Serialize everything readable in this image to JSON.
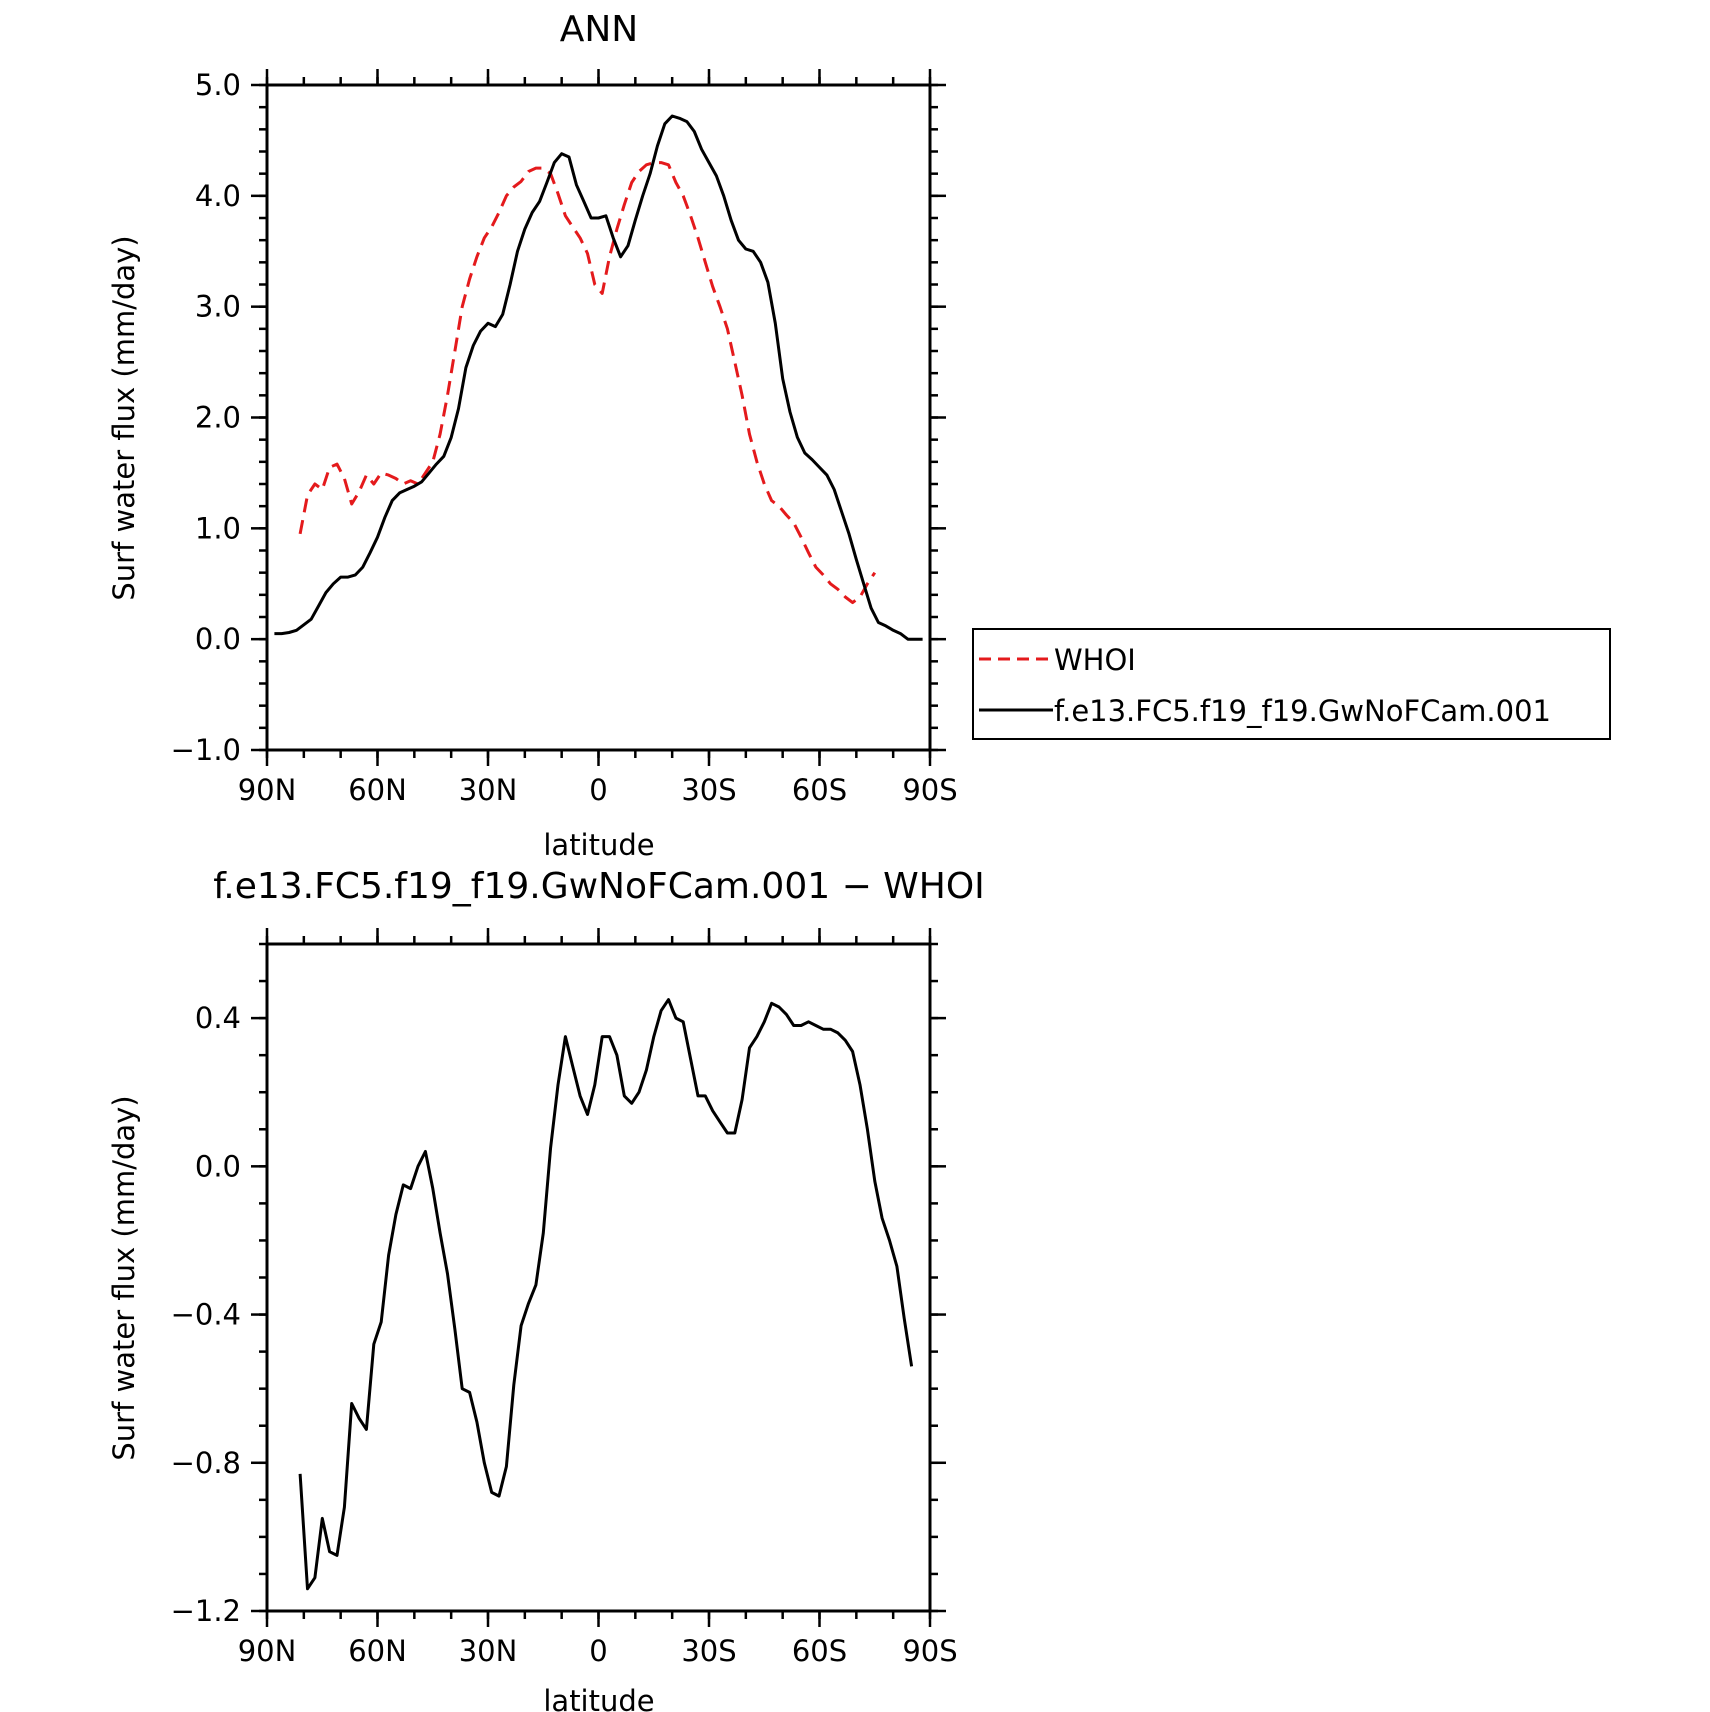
{
  "chart_data": [
    {
      "type": "line",
      "title": "ANN",
      "xlabel": "latitude",
      "ylabel": "Surf water flux (mm/day)",
      "xlim": [
        90,
        -90
      ],
      "ylim": [
        -1.0,
        5.0
      ],
      "x_ticks": [
        90,
        60,
        30,
        0,
        -30,
        -60,
        -90
      ],
      "x_tick_labels": [
        "90N",
        "60N",
        "30N",
        "0",
        "30S",
        "60S",
        "90S"
      ],
      "y_ticks": [
        -1.0,
        0.0,
        1.0,
        2.0,
        3.0,
        4.0,
        5.0
      ],
      "y_tick_labels": [
        "−1.0",
        "0.0",
        "1.0",
        "2.0",
        "3.0",
        "4.0",
        "5.0"
      ],
      "legend_position": "right, outside plot",
      "series": [
        {
          "name": "WHOI",
          "color": "#e41a1c",
          "style": "dashed",
          "points": [
            [
              81,
              0.95
            ],
            [
              79,
              1.3
            ],
            [
              77,
              1.4
            ],
            [
              75,
              1.35
            ],
            [
              73,
              1.55
            ],
            [
              71,
              1.58
            ],
            [
              69,
              1.45
            ],
            [
              67,
              1.22
            ],
            [
              65,
              1.33
            ],
            [
              63,
              1.48
            ],
            [
              61,
              1.4
            ],
            [
              59,
              1.5
            ],
            [
              57,
              1.48
            ],
            [
              55,
              1.45
            ],
            [
              53,
              1.4
            ],
            [
              51,
              1.43
            ],
            [
              49,
              1.4
            ],
            [
              47,
              1.5
            ],
            [
              45,
              1.6
            ],
            [
              43,
              1.85
            ],
            [
              41,
              2.2
            ],
            [
              39,
              2.6
            ],
            [
              37,
              3.0
            ],
            [
              35,
              3.25
            ],
            [
              33,
              3.45
            ],
            [
              31,
              3.62
            ],
            [
              29,
              3.72
            ],
            [
              27,
              3.85
            ],
            [
              25,
              4.0
            ],
            [
              23,
              4.08
            ],
            [
              21,
              4.13
            ],
            [
              19,
              4.22
            ],
            [
              17,
              4.25
            ],
            [
              15,
              4.25
            ],
            [
              13,
              4.2
            ],
            [
              11,
              4.02
            ],
            [
              9,
              3.82
            ],
            [
              7,
              3.72
            ],
            [
              5,
              3.62
            ],
            [
              3,
              3.48
            ],
            [
              1,
              3.2
            ],
            [
              -1,
              3.12
            ],
            [
              -3,
              3.45
            ],
            [
              -5,
              3.7
            ],
            [
              -7,
              3.92
            ],
            [
              -9,
              4.12
            ],
            [
              -11,
              4.22
            ],
            [
              -13,
              4.28
            ],
            [
              -15,
              4.3
            ],
            [
              -17,
              4.3
            ],
            [
              -19,
              4.28
            ],
            [
              -21,
              4.12
            ],
            [
              -23,
              4.0
            ],
            [
              -25,
              3.82
            ],
            [
              -27,
              3.62
            ],
            [
              -29,
              3.4
            ],
            [
              -31,
              3.18
            ],
            [
              -33,
              3.0
            ],
            [
              -35,
              2.8
            ],
            [
              -37,
              2.5
            ],
            [
              -39,
              2.2
            ],
            [
              -41,
              1.85
            ],
            [
              -43,
              1.6
            ],
            [
              -45,
              1.4
            ],
            [
              -47,
              1.25
            ],
            [
              -49,
              1.2
            ],
            [
              -51,
              1.12
            ],
            [
              -53,
              1.05
            ],
            [
              -55,
              0.92
            ],
            [
              -57,
              0.78
            ],
            [
              -59,
              0.65
            ],
            [
              -61,
              0.58
            ],
            [
              -63,
              0.5
            ],
            [
              -65,
              0.45
            ],
            [
              -67,
              0.38
            ],
            [
              -69,
              0.33
            ],
            [
              -71,
              0.38
            ],
            [
              -73,
              0.5
            ],
            [
              -75,
              0.6
            ]
          ]
        },
        {
          "name": "f.e13.FC5.f19_f19.GwNoFCam.001",
          "color": "#000000",
          "style": "solid",
          "points": [
            [
              88,
              0.05
            ],
            [
              86,
              0.05
            ],
            [
              84,
              0.06
            ],
            [
              82,
              0.08
            ],
            [
              80,
              0.13
            ],
            [
              78,
              0.18
            ],
            [
              76,
              0.3
            ],
            [
              74,
              0.42
            ],
            [
              72,
              0.5
            ],
            [
              70,
              0.56
            ],
            [
              68,
              0.56
            ],
            [
              66,
              0.58
            ],
            [
              64,
              0.65
            ],
            [
              62,
              0.78
            ],
            [
              60,
              0.92
            ],
            [
              58,
              1.1
            ],
            [
              56,
              1.25
            ],
            [
              54,
              1.32
            ],
            [
              52,
              1.35
            ],
            [
              50,
              1.38
            ],
            [
              48,
              1.42
            ],
            [
              46,
              1.5
            ],
            [
              44,
              1.58
            ],
            [
              42,
              1.65
            ],
            [
              40,
              1.82
            ],
            [
              38,
              2.08
            ],
            [
              36,
              2.45
            ],
            [
              34,
              2.65
            ],
            [
              32,
              2.78
            ],
            [
              30,
              2.85
            ],
            [
              28,
              2.82
            ],
            [
              26,
              2.93
            ],
            [
              24,
              3.2
            ],
            [
              22,
              3.5
            ],
            [
              20,
              3.7
            ],
            [
              18,
              3.85
            ],
            [
              16,
              3.95
            ],
            [
              14,
              4.12
            ],
            [
              12,
              4.3
            ],
            [
              10,
              4.38
            ],
            [
              8,
              4.35
            ],
            [
              6,
              4.1
            ],
            [
              4,
              3.95
            ],
            [
              2,
              3.8
            ],
            [
              0,
              3.8
            ],
            [
              -2,
              3.82
            ],
            [
              -4,
              3.62
            ],
            [
              -6,
              3.45
            ],
            [
              -8,
              3.55
            ],
            [
              -10,
              3.78
            ],
            [
              -12,
              4.0
            ],
            [
              -14,
              4.2
            ],
            [
              -16,
              4.45
            ],
            [
              -18,
              4.65
            ],
            [
              -20,
              4.72
            ],
            [
              -22,
              4.7
            ],
            [
              -24,
              4.67
            ],
            [
              -26,
              4.58
            ],
            [
              -28,
              4.42
            ],
            [
              -30,
              4.3
            ],
            [
              -32,
              4.18
            ],
            [
              -34,
              4.0
            ],
            [
              -36,
              3.78
            ],
            [
              -38,
              3.6
            ],
            [
              -40,
              3.52
            ],
            [
              -42,
              3.5
            ],
            [
              -44,
              3.4
            ],
            [
              -46,
              3.22
            ],
            [
              -48,
              2.85
            ],
            [
              -50,
              2.35
            ],
            [
              -52,
              2.05
            ],
            [
              -54,
              1.82
            ],
            [
              -56,
              1.68
            ],
            [
              -58,
              1.62
            ],
            [
              -60,
              1.55
            ],
            [
              -62,
              1.48
            ],
            [
              -64,
              1.35
            ],
            [
              -66,
              1.15
            ],
            [
              -68,
              0.95
            ],
            [
              -70,
              0.72
            ],
            [
              -72,
              0.5
            ],
            [
              -74,
              0.28
            ],
            [
              -76,
              0.15
            ],
            [
              -78,
              0.12
            ],
            [
              -80,
              0.08
            ],
            [
              -82,
              0.05
            ],
            [
              -84,
              0.0
            ],
            [
              -86,
              0.0
            ],
            [
              -88,
              0.0
            ]
          ]
        }
      ]
    },
    {
      "type": "line",
      "title": "f.e13.FC5.f19_f19.GwNoFCam.001 − WHOI",
      "xlabel": "latitude",
      "ylabel": "Surf water flux (mm/day)",
      "xlim": [
        90,
        -90
      ],
      "ylim": [
        -1.2,
        0.6
      ],
      "x_ticks": [
        90,
        60,
        30,
        0,
        -30,
        -60,
        -90
      ],
      "x_tick_labels": [
        "90N",
        "60N",
        "30N",
        "0",
        "30S",
        "60S",
        "90S"
      ],
      "y_ticks": [
        -1.2,
        -0.8,
        -0.4,
        0.0,
        0.4
      ],
      "y_tick_labels": [
        "−1.2",
        "−0.8",
        "−0.4",
        "0.0",
        "0.4"
      ],
      "series": [
        {
          "color": "#000000",
          "style": "solid",
          "points": [
            [
              81,
              -0.83
            ],
            [
              79,
              -1.14
            ],
            [
              77,
              -1.11
            ],
            [
              75,
              -0.95
            ],
            [
              73,
              -1.04
            ],
            [
              71,
              -1.05
            ],
            [
              69,
              -0.92
            ],
            [
              67,
              -0.64
            ],
            [
              65,
              -0.68
            ],
            [
              63,
              -0.71
            ],
            [
              61,
              -0.48
            ],
            [
              59,
              -0.42
            ],
            [
              57,
              -0.24
            ],
            [
              55,
              -0.13
            ],
            [
              53,
              -0.05
            ],
            [
              51,
              -0.06
            ],
            [
              49,
              0.0
            ],
            [
              47,
              0.04
            ],
            [
              45,
              -0.06
            ],
            [
              43,
              -0.18
            ],
            [
              41,
              -0.29
            ],
            [
              39,
              -0.44
            ],
            [
              37,
              -0.6
            ],
            [
              35,
              -0.61
            ],
            [
              33,
              -0.69
            ],
            [
              31,
              -0.8
            ],
            [
              29,
              -0.88
            ],
            [
              27,
              -0.89
            ],
            [
              25,
              -0.81
            ],
            [
              23,
              -0.59
            ],
            [
              21,
              -0.43
            ],
            [
              19,
              -0.37
            ],
            [
              17,
              -0.32
            ],
            [
              15,
              -0.18
            ],
            [
              13,
              0.05
            ],
            [
              11,
              0.22
            ],
            [
              9,
              0.35
            ],
            [
              7,
              0.27
            ],
            [
              5,
              0.19
            ],
            [
              3,
              0.14
            ],
            [
              1,
              0.22
            ],
            [
              -1,
              0.35
            ],
            [
              -3,
              0.35
            ],
            [
              -5,
              0.3
            ],
            [
              -7,
              0.19
            ],
            [
              -9,
              0.17
            ],
            [
              -11,
              0.2
            ],
            [
              -13,
              0.26
            ],
            [
              -15,
              0.35
            ],
            [
              -17,
              0.42
            ],
            [
              -19,
              0.45
            ],
            [
              -21,
              0.4
            ],
            [
              -23,
              0.39
            ],
            [
              -25,
              0.29
            ],
            [
              -27,
              0.19
            ],
            [
              -29,
              0.19
            ],
            [
              -31,
              0.15
            ],
            [
              -33,
              0.12
            ],
            [
              -35,
              0.09
            ],
            [
              -37,
              0.09
            ],
            [
              -39,
              0.18
            ],
            [
              -41,
              0.32
            ],
            [
              -43,
              0.35
            ],
            [
              -45,
              0.39
            ],
            [
              -47,
              0.44
            ],
            [
              -49,
              0.43
            ],
            [
              -51,
              0.41
            ],
            [
              -53,
              0.38
            ],
            [
              -55,
              0.38
            ],
            [
              -57,
              0.39
            ],
            [
              -59,
              0.38
            ],
            [
              -61,
              0.37
            ],
            [
              -63,
              0.37
            ],
            [
              -65,
              0.36
            ],
            [
              -67,
              0.34
            ],
            [
              -69,
              0.31
            ],
            [
              -71,
              0.22
            ],
            [
              -73,
              0.1
            ],
            [
              -75,
              -0.04
            ],
            [
              -77,
              -0.14
            ],
            [
              -79,
              -0.2
            ],
            [
              -81,
              -0.27
            ],
            [
              -83,
              -0.41
            ],
            [
              -85,
              -0.54
            ]
          ]
        }
      ]
    }
  ]
}
